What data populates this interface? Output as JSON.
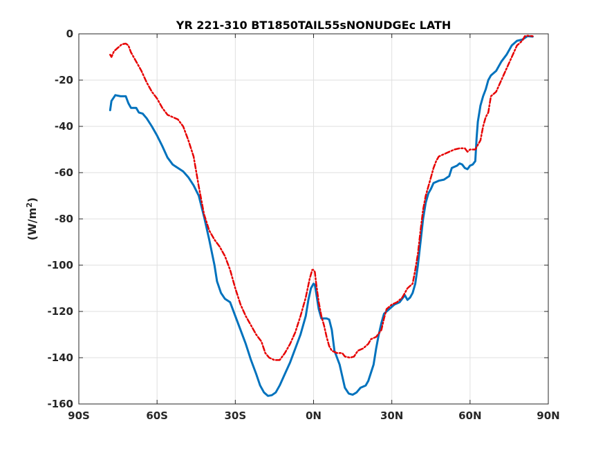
{
  "chart_data": {
    "type": "line",
    "title": "YR 221-310 BT1850TAIL55sNONUDGEc LATH",
    "xlabel": "",
    "ylabel": "(W/m²)",
    "ylabel_base": "(W/m",
    "ylabel_sup": "2",
    "ylabel_close": ")",
    "xlim": [
      -90,
      90
    ],
    "ylim": [
      -160,
      0
    ],
    "grid": true,
    "xticks": [
      -90,
      -60,
      -30,
      0,
      30,
      60,
      90
    ],
    "xtick_labels": [
      "90S",
      "60S",
      "30S",
      "0N",
      "30N",
      "60N",
      "90N"
    ],
    "yticks": [
      -160,
      -140,
      -120,
      -100,
      -80,
      -60,
      -40,
      -20,
      0
    ],
    "ytick_labels": [
      "-160",
      "-140",
      "-120",
      "-100",
      "-80",
      "-60",
      "-40",
      "-20",
      "0"
    ],
    "series": [
      {
        "color": "#0072BD",
        "style": "solid",
        "points": [
          [
            -78,
            -33
          ],
          [
            -77.5,
            -29
          ],
          [
            -76,
            -26.5
          ],
          [
            -74,
            -27
          ],
          [
            -72,
            -27
          ],
          [
            -71,
            -30
          ],
          [
            -70,
            -32
          ],
          [
            -68,
            -32
          ],
          [
            -67,
            -34
          ],
          [
            -65.5,
            -34.5
          ],
          [
            -64,
            -36.5
          ],
          [
            -62,
            -40
          ],
          [
            -60,
            -44
          ],
          [
            -58,
            -48.5
          ],
          [
            -56,
            -53.5
          ],
          [
            -54,
            -56.5
          ],
          [
            -52,
            -58
          ],
          [
            -50,
            -59.5
          ],
          [
            -48,
            -62
          ],
          [
            -46,
            -65.5
          ],
          [
            -44,
            -70
          ],
          [
            -42,
            -79
          ],
          [
            -40,
            -89
          ],
          [
            -38,
            -100
          ],
          [
            -37,
            -107
          ],
          [
            -35.5,
            -112
          ],
          [
            -34,
            -114.5
          ],
          [
            -32,
            -116
          ],
          [
            -30,
            -122
          ],
          [
            -28,
            -128
          ],
          [
            -26,
            -134
          ],
          [
            -24,
            -141
          ],
          [
            -22,
            -147
          ],
          [
            -20.5,
            -152
          ],
          [
            -19,
            -155
          ],
          [
            -17.5,
            -156.5
          ],
          [
            -16,
            -156.2
          ],
          [
            -14.5,
            -155
          ],
          [
            -13,
            -152
          ],
          [
            -11,
            -147
          ],
          [
            -9,
            -142
          ],
          [
            -7,
            -136
          ],
          [
            -5,
            -130
          ],
          [
            -3,
            -122
          ],
          [
            -2,
            -115
          ],
          [
            -1,
            -110
          ],
          [
            0,
            -108
          ],
          [
            0.5,
            -108.5
          ],
          [
            1,
            -112
          ],
          [
            2,
            -119
          ],
          [
            3,
            -123
          ],
          [
            5,
            -123
          ],
          [
            6,
            -123.5
          ],
          [
            7,
            -128
          ],
          [
            8,
            -137
          ],
          [
            10,
            -143
          ],
          [
            11,
            -148
          ],
          [
            12,
            -153
          ],
          [
            13.5,
            -155.5
          ],
          [
            15,
            -156
          ],
          [
            16.5,
            -155
          ],
          [
            18,
            -153
          ],
          [
            20,
            -152
          ],
          [
            21,
            -150
          ],
          [
            23,
            -143
          ],
          [
            24,
            -136
          ],
          [
            25,
            -130
          ],
          [
            26,
            -125
          ],
          [
            27,
            -121
          ],
          [
            29,
            -119
          ],
          [
            31,
            -117
          ],
          [
            33,
            -116
          ],
          [
            35,
            -113
          ],
          [
            36,
            -115
          ],
          [
            37,
            -114
          ],
          [
            38,
            -112
          ],
          [
            39,
            -108
          ],
          [
            40,
            -100
          ],
          [
            41,
            -90
          ],
          [
            42,
            -80
          ],
          [
            43,
            -73
          ],
          [
            44,
            -69
          ],
          [
            45,
            -67
          ],
          [
            46,
            -64.5
          ],
          [
            48,
            -63.5
          ],
          [
            50,
            -63
          ],
          [
            52,
            -61.5
          ],
          [
            53,
            -58
          ],
          [
            55,
            -57
          ],
          [
            56,
            -56
          ],
          [
            57,
            -56.5
          ],
          [
            58,
            -58
          ],
          [
            59,
            -58.5
          ],
          [
            60,
            -57
          ],
          [
            61,
            -56.5
          ],
          [
            62,
            -55
          ],
          [
            62.5,
            -45
          ],
          [
            63,
            -38
          ],
          [
            64,
            -31
          ],
          [
            65,
            -27
          ],
          [
            66,
            -24
          ],
          [
            67,
            -20
          ],
          [
            68,
            -18
          ],
          [
            70,
            -16
          ],
          [
            72,
            -12
          ],
          [
            74,
            -9
          ],
          [
            76,
            -5
          ],
          [
            78,
            -3
          ],
          [
            80,
            -2.5
          ],
          [
            82,
            -1
          ],
          [
            84,
            -1.2
          ]
        ]
      },
      {
        "color": "#E60000",
        "style": "dashed",
        "points": [
          [
            -78,
            -9
          ],
          [
            -77.5,
            -10
          ],
          [
            -76.5,
            -7.5
          ],
          [
            -75,
            -6
          ],
          [
            -73.5,
            -4.5
          ],
          [
            -72,
            -4.2
          ],
          [
            -71,
            -5
          ],
          [
            -70,
            -8
          ],
          [
            -68,
            -12
          ],
          [
            -66,
            -16
          ],
          [
            -64,
            -21
          ],
          [
            -62,
            -25
          ],
          [
            -60,
            -28
          ],
          [
            -58,
            -32
          ],
          [
            -56,
            -35
          ],
          [
            -54,
            -36
          ],
          [
            -52,
            -37
          ],
          [
            -50,
            -40
          ],
          [
            -48,
            -46
          ],
          [
            -46,
            -53
          ],
          [
            -44,
            -66
          ],
          [
            -42,
            -78
          ],
          [
            -40,
            -85
          ],
          [
            -38,
            -89
          ],
          [
            -36,
            -92
          ],
          [
            -34,
            -96
          ],
          [
            -32,
            -102
          ],
          [
            -30,
            -110
          ],
          [
            -28,
            -117
          ],
          [
            -26,
            -122
          ],
          [
            -24,
            -126
          ],
          [
            -22,
            -130
          ],
          [
            -20,
            -133
          ],
          [
            -18.5,
            -138
          ],
          [
            -17,
            -140
          ],
          [
            -15,
            -141
          ],
          [
            -13,
            -141
          ],
          [
            -11,
            -138
          ],
          [
            -9,
            -134
          ],
          [
            -7,
            -129
          ],
          [
            -5,
            -122
          ],
          [
            -3,
            -114
          ],
          [
            -1.5,
            -106
          ],
          [
            -0.5,
            -102
          ],
          [
            0,
            -102
          ],
          [
            0.5,
            -103
          ],
          [
            1,
            -108
          ],
          [
            2,
            -116
          ],
          [
            3,
            -122
          ],
          [
            4,
            -126
          ],
          [
            5,
            -131
          ],
          [
            6,
            -135
          ],
          [
            7,
            -137
          ],
          [
            9,
            -138
          ],
          [
            11,
            -138
          ],
          [
            12,
            -139.5
          ],
          [
            14,
            -140
          ],
          [
            15.5,
            -139.5
          ],
          [
            17,
            -137
          ],
          [
            19,
            -136
          ],
          [
            21,
            -134
          ],
          [
            22,
            -132
          ],
          [
            24,
            -131
          ],
          [
            26,
            -128
          ],
          [
            27,
            -123
          ],
          [
            28,
            -119
          ],
          [
            30,
            -117
          ],
          [
            32,
            -116
          ],
          [
            34,
            -114
          ],
          [
            36,
            -110
          ],
          [
            38,
            -108
          ],
          [
            39,
            -102
          ],
          [
            40,
            -95
          ],
          [
            41,
            -85
          ],
          [
            42,
            -76
          ],
          [
            43,
            -70
          ],
          [
            44,
            -66
          ],
          [
            45,
            -62
          ],
          [
            46,
            -58
          ],
          [
            47,
            -55
          ],
          [
            48,
            -53
          ],
          [
            50,
            -52
          ],
          [
            52,
            -51
          ],
          [
            54,
            -50
          ],
          [
            56,
            -49.5
          ],
          [
            58,
            -49.5
          ],
          [
            59,
            -51
          ],
          [
            60,
            -50
          ],
          [
            62,
            -50
          ],
          [
            63,
            -48
          ],
          [
            64,
            -46
          ],
          [
            65,
            -40
          ],
          [
            66,
            -36
          ],
          [
            67,
            -34
          ],
          [
            68,
            -27
          ],
          [
            70,
            -25
          ],
          [
            72,
            -20
          ],
          [
            74,
            -15
          ],
          [
            76,
            -10
          ],
          [
            78,
            -5
          ],
          [
            80,
            -3
          ],
          [
            81,
            -1
          ],
          [
            82,
            -0.8
          ],
          [
            84,
            -1
          ]
        ]
      }
    ]
  }
}
